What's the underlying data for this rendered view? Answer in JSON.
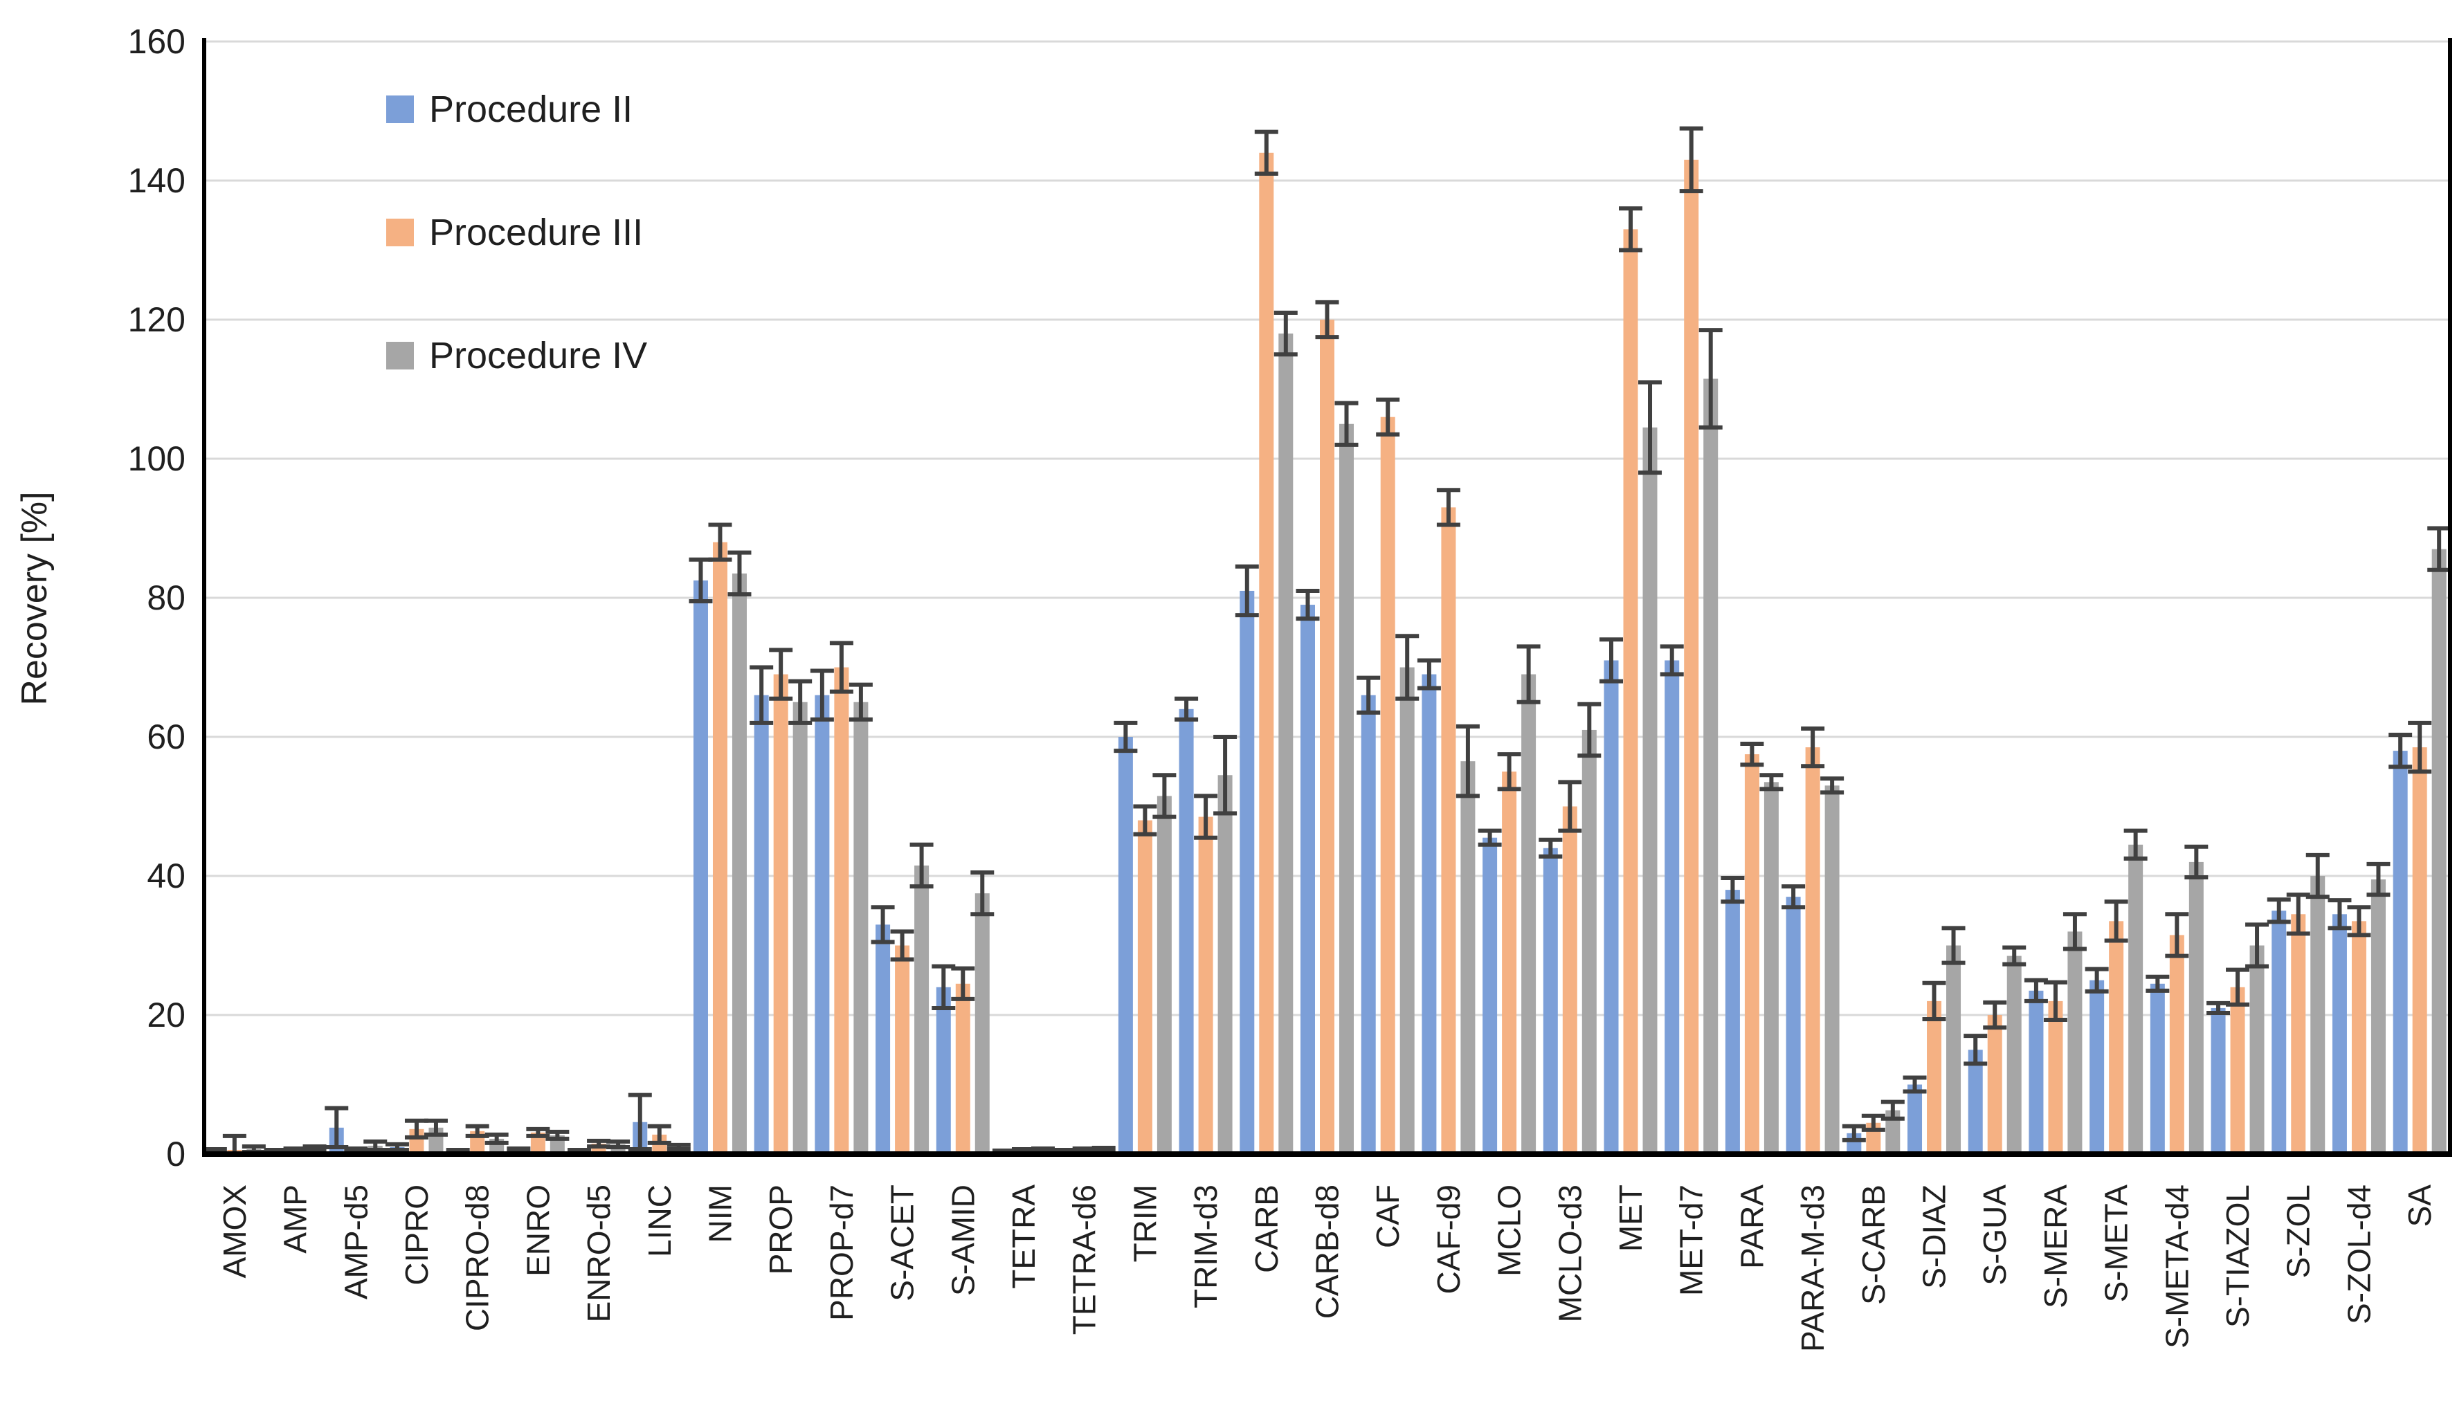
{
  "chart_data": {
    "type": "bar",
    "title": "",
    "xlabel": "",
    "ylabel": "Recovery [%]",
    "ylim": [
      0,
      160
    ],
    "ytick_step": 20,
    "ytick_labels": [
      "0",
      "20",
      "40",
      "60",
      "80",
      "100",
      "120",
      "140",
      "160"
    ],
    "grid": true,
    "legend_position": "top-left-inside",
    "colors": {
      "axis": "#000000",
      "gridline": "#d9d9d9",
      "error_bar": "#404040",
      "text": "#1f1f1f"
    },
    "categories": [
      "AMOX",
      "AMP",
      "AMP-d5",
      "CIPRO",
      "CIPRO-d8",
      "ENRO",
      "ENRO-d5",
      "LINC",
      "NIM",
      "PROP",
      "PROP-d7",
      "S-ACET",
      "S-AMID",
      "TETRA",
      "TETRA-d6",
      "TRIM",
      "TRIM-d3",
      "CARB",
      "CARB-d8",
      "CAF",
      "CAF-d9",
      "MCLO",
      "MCLO-d3",
      "MET",
      "MET-d7",
      "PARA",
      "PARA-M-d3",
      "S-CARB",
      "S-DIAZ",
      "S-GUA",
      "S-MERA",
      "S-META",
      "S-META-d4",
      "S-TIAZOL",
      "S-ZOL",
      "S-ZOL-d4",
      "SA"
    ],
    "series": [
      {
        "name": "Procedure II",
        "color": "#7c9fd8",
        "values": [
          0.4,
          0.4,
          3.8,
          1.0,
          0.4,
          0.5,
          0.4,
          4.6,
          82.5,
          66,
          66,
          33,
          24,
          0.3,
          0.4,
          60,
          64,
          81,
          79,
          66,
          69,
          45.5,
          44,
          71,
          71,
          38,
          37,
          3,
          10,
          15,
          23.5,
          25,
          24.5,
          21,
          35,
          34.5,
          58
        ],
        "errors": [
          0.3,
          0.2,
          2.8,
          0.4,
          0.2,
          0.3,
          0.2,
          3.9,
          3,
          4,
          3.5,
          2.5,
          3,
          0.2,
          0.2,
          2,
          1.5,
          3.5,
          2,
          2.5,
          2,
          1,
          1.2,
          3,
          2,
          1.7,
          1.5,
          1,
          1,
          2,
          1.5,
          1.6,
          1,
          0.7,
          1.6,
          2,
          2.3
        ]
      },
      {
        "name": "Procedure III",
        "color": "#f5b183",
        "values": [
          0.6,
          0.5,
          0.5,
          3.6,
          3.3,
          3.1,
          1.5,
          2.8,
          88,
          69,
          70,
          30,
          24.5,
          0.4,
          0.5,
          48,
          48.5,
          144,
          120,
          106,
          93,
          55,
          50,
          133,
          143,
          57.5,
          58.5,
          4.5,
          22,
          20,
          22,
          33.5,
          31.5,
          24,
          34.5,
          33.5,
          58.5
        ],
        "errors": [
          2.0,
          0.3,
          0.3,
          1.2,
          0.7,
          0.5,
          0.4,
          1.2,
          2.5,
          3.5,
          3.5,
          2,
          2.2,
          0.3,
          0.3,
          2,
          3,
          3,
          2.5,
          2.5,
          2.5,
          2.5,
          3.5,
          3,
          4.5,
          1.5,
          2.7,
          1,
          2.6,
          1.8,
          2.7,
          2.8,
          3,
          2.5,
          2.8,
          2,
          3.5
        ]
      },
      {
        "name": "Procedure IV",
        "color": "#a6a6a6",
        "values": [
          0.7,
          0.8,
          1.2,
          3.8,
          2.2,
          2.7,
          1.4,
          1.0,
          83.5,
          65,
          65,
          41.5,
          37.5,
          0.5,
          0.6,
          51.5,
          54.5,
          118,
          105,
          70,
          56.5,
          69,
          61,
          104.5,
          111.5,
          53.5,
          53,
          6.3,
          30,
          28.5,
          32,
          44.5,
          42,
          30,
          40,
          39.5,
          87
        ],
        "errors": [
          0.4,
          0.3,
          0.6,
          1.0,
          0.6,
          0.5,
          0.4,
          0.3,
          3,
          3,
          2.5,
          3,
          3,
          0.3,
          0.3,
          3,
          5.5,
          3,
          3,
          4.5,
          5,
          4,
          3.7,
          6.5,
          7,
          1,
          1,
          1.2,
          2.5,
          1.2,
          2.5,
          2,
          2.2,
          3,
          3,
          2.2,
          3
        ]
      }
    ]
  },
  "legend": {
    "items": [
      {
        "label": "Procedure II",
        "color": "#7c9fd8"
      },
      {
        "label": "Procedure III",
        "color": "#f5b183"
      },
      {
        "label": "Procedure IV",
        "color": "#a6a6a6"
      }
    ]
  }
}
